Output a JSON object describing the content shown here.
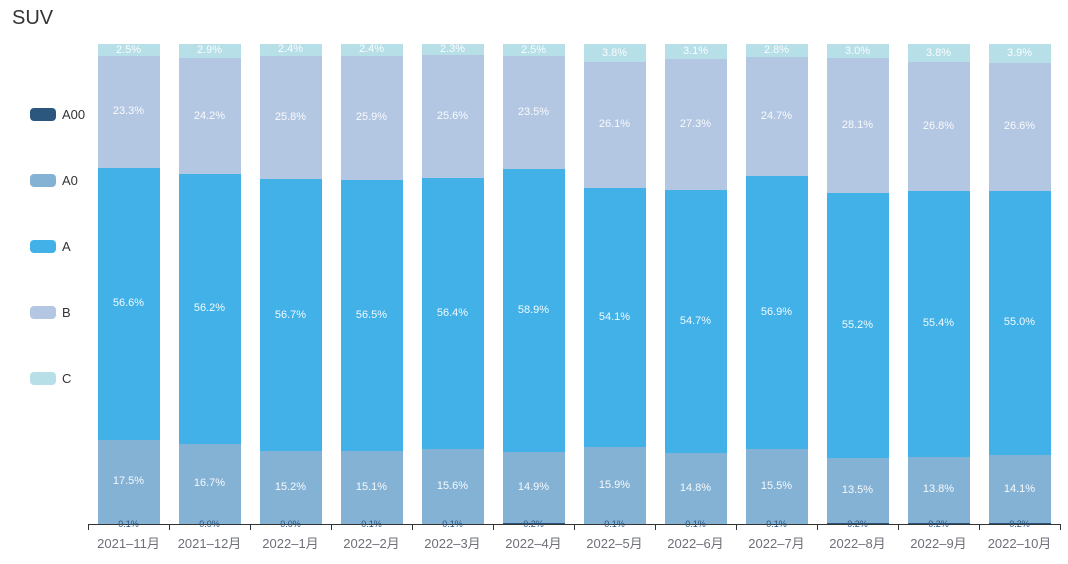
{
  "title": "SUV",
  "axis": {
    "line_color": "#333333",
    "label_color": "#6e7079"
  },
  "label_style": {
    "inside_color": "#ffffff",
    "a00_label_color": "#2b567e"
  },
  "legend": {
    "items": [
      {
        "label": "A00",
        "color": "#2b567e"
      },
      {
        "label": "A0",
        "color": "#84b2d5"
      },
      {
        "label": "A",
        "color": "#41b1e8"
      },
      {
        "label": "B",
        "color": "#b3c6e2"
      },
      {
        "label": "C",
        "color": "#b6dfe8"
      }
    ]
  },
  "chart_data": {
    "type": "bar",
    "stacked": true,
    "percent": true,
    "title": "SUV",
    "xlabel": "",
    "ylabel": "",
    "ylim": [
      0,
      100
    ],
    "grid": false,
    "legend_position": "left",
    "value_suffix": "%",
    "categories": [
      "2021–11月",
      "2021–12月",
      "2022–1月",
      "2022–2月",
      "2022–3月",
      "2022–4月",
      "2022–5月",
      "2022–6月",
      "2022–7月",
      "2022–8月",
      "2022–9月",
      "2022–10月"
    ],
    "series": [
      {
        "name": "A00",
        "color": "#2b567e",
        "values": [
          0.1,
          0.0,
          0.0,
          0.1,
          0.1,
          0.2,
          0.1,
          0.1,
          0.1,
          0.2,
          0.2,
          0.2
        ]
      },
      {
        "name": "A0",
        "color": "#84b2d5",
        "values": [
          17.5,
          16.7,
          15.2,
          15.1,
          15.6,
          14.9,
          15.9,
          14.8,
          15.5,
          13.5,
          13.8,
          14.1
        ]
      },
      {
        "name": "A",
        "color": "#41b1e8",
        "values": [
          56.6,
          56.2,
          56.7,
          56.5,
          56.4,
          58.9,
          54.1,
          54.7,
          56.9,
          55.2,
          55.4,
          55.0
        ]
      },
      {
        "name": "B",
        "color": "#b3c6e2",
        "values": [
          23.3,
          24.2,
          25.8,
          25.9,
          25.6,
          23.5,
          26.1,
          27.3,
          24.7,
          28.1,
          26.8,
          26.6
        ]
      },
      {
        "name": "C",
        "color": "#b6dfe8",
        "values": [
          2.5,
          2.9,
          2.4,
          2.4,
          2.3,
          2.5,
          3.8,
          3.1,
          2.8,
          3.0,
          3.8,
          3.9
        ]
      }
    ]
  }
}
